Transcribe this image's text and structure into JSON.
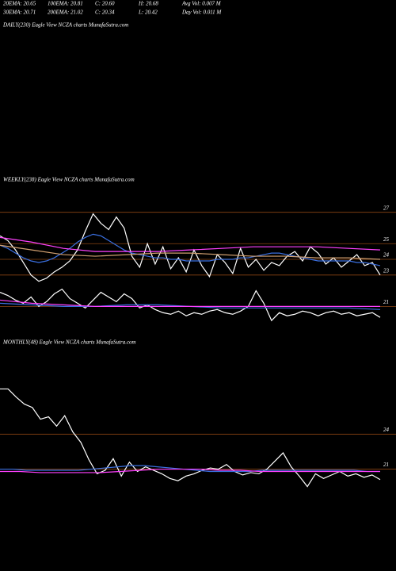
{
  "header": {
    "rows": [
      [
        "20EMA: 20.65",
        "100EMA: 20.81",
        "C: 20.60",
        "H: 20.68",
        "Avg Vol: 0.007 M"
      ],
      [
        "30EMA: 20.71",
        "200EMA: 21.02",
        "C: 20.34",
        "L: 20.42",
        "Day Vol: 0.011 M"
      ]
    ]
  },
  "chart_data": [
    {
      "type": "line",
      "title": "DAILY(230) Eagle  View  NCZA charts MunafaSutra.com",
      "series": []
    },
    {
      "type": "line",
      "title": "WEEKLY(238) Eagle  View  NCZA charts MunafaSutra.com",
      "ylim": [
        19.4,
        28.4
      ],
      "yticks": [
        27,
        25,
        24,
        23,
        21
      ],
      "grid": true,
      "grid_color": "#8b4513",
      "series": [
        {
          "color": "#ffffff",
          "values": [
            25.5,
            25.2,
            24.6,
            23.8,
            23.0,
            22.6,
            22.8,
            23.2,
            23.5,
            23.9,
            24.6,
            25.8,
            26.9,
            26.3,
            25.9,
            26.7,
            26.0,
            24.2,
            23.5,
            25.0,
            23.7,
            24.8,
            23.4,
            24.1,
            23.2,
            24.6,
            23.6,
            22.9,
            24.3,
            23.8,
            23.1,
            24.7,
            23.5,
            24.0,
            23.3,
            23.8,
            23.6,
            24.2,
            24.5,
            23.9,
            24.8,
            24.4,
            23.7,
            24.1,
            23.5,
            23.9,
            24.3,
            23.6,
            23.8,
            23.0
          ]
        },
        {
          "color": "#ffffff",
          "values": [
            21.9,
            21.7,
            21.4,
            21.2,
            21.6,
            21.0,
            21.3,
            21.8,
            22.1,
            21.5,
            21.2,
            20.9,
            21.4,
            21.9,
            21.6,
            21.3,
            21.8,
            21.5,
            20.9,
            21.1,
            20.8,
            20.6,
            20.5,
            20.7,
            20.4,
            20.6,
            20.5,
            20.7,
            20.8,
            20.6,
            20.5,
            20.7,
            21.0,
            22.0,
            21.2,
            20.1,
            20.6,
            20.4,
            20.5,
            20.7,
            20.6,
            20.4,
            20.6,
            20.7,
            20.5,
            20.6,
            20.4,
            20.5,
            20.6,
            20.3
          ]
        },
        {
          "color": "#3a6fe0",
          "values": [
            24.9,
            24.7,
            24.4,
            24.1,
            23.9,
            23.8,
            23.9,
            24.1,
            24.4,
            24.7,
            25.1,
            25.4,
            25.6,
            25.5,
            25.2,
            24.9,
            24.6,
            24.4,
            24.3,
            24.2,
            24.1,
            24.1,
            24.0,
            24.0,
            23.9,
            23.9,
            23.9,
            23.9,
            24.0,
            24.0,
            24.0,
            24.1,
            24.1,
            24.2,
            24.3,
            24.4,
            24.4,
            24.3,
            24.2,
            24.1,
            24.0,
            23.9,
            23.9,
            23.9,
            23.9,
            23.9,
            23.8,
            23.8,
            23.7,
            23.6
          ]
        },
        {
          "color": "#ff40ff",
          "values": [
            25.4,
            25.1,
            24.7,
            24.5,
            24.5,
            24.5,
            24.6,
            24.7,
            24.8,
            24.8,
            24.8,
            24.7,
            24.6
          ]
        },
        {
          "color": "#d2a070",
          "values": [
            24.9,
            24.6,
            24.3,
            24.2,
            24.3,
            24.4,
            24.4,
            24.3,
            24.2,
            24.2,
            24.1,
            24.1,
            24.0
          ]
        },
        {
          "color": "#3a6fe0",
          "values": [
            21.2,
            21.1,
            21.0,
            21.0,
            21.1,
            21.1,
            21.0,
            20.9,
            20.9,
            20.9,
            20.9,
            20.9,
            20.8
          ]
        },
        {
          "color": "#ff40ff",
          "values": [
            21.4,
            21.2,
            21.1,
            21.0,
            21.0,
            21.0,
            21.0,
            21.0,
            21.0,
            21.0,
            21.0,
            21.0,
            21.0
          ]
        }
      ]
    },
    {
      "type": "line",
      "title": "MONTHLY(48) Eagle  View  NCZA charts MunafaSutra.com",
      "ylim": [
        13.6,
        31.0
      ],
      "yticks": [
        24,
        21
      ],
      "grid": true,
      "grid_color": "#8b4513",
      "series": [
        {
          "color": "#ffffff",
          "values": [
            27.9,
            27.9,
            27.2,
            26.6,
            26.3,
            25.3,
            25.5,
            24.7,
            25.6,
            24.2,
            23.3,
            21.8,
            20.6,
            20.9,
            21.9,
            20.4,
            21.6,
            20.8,
            21.2,
            20.9,
            20.6,
            20.2,
            20.0,
            20.4,
            20.6,
            20.9,
            21.1,
            21.0,
            21.4,
            20.8,
            20.5,
            20.7,
            20.6,
            21.0,
            21.7,
            22.4,
            21.2,
            20.4,
            19.5,
            20.6,
            20.2,
            20.5,
            20.8,
            20.4,
            20.6,
            20.3,
            20.5,
            20.1
          ]
        },
        {
          "color": "#3a6fe0",
          "values": [
            21.0,
            21.0,
            20.9,
            20.9,
            20.9,
            20.9,
            20.9,
            21.0,
            21.1,
            21.2,
            21.3,
            21.3,
            21.2,
            21.1,
            21.0,
            20.9,
            20.8,
            20.8,
            20.8,
            20.8,
            20.9,
            20.9,
            20.9,
            20.9,
            20.9,
            20.9,
            20.9,
            20.9,
            20.8,
            20.8
          ]
        },
        {
          "color": "#ff40ff",
          "values": [
            20.8,
            20.8,
            20.7,
            20.7,
            20.7,
            20.7,
            20.8,
            20.9,
            21.0,
            21.0,
            21.0,
            20.9,
            20.9,
            20.8,
            20.8,
            20.8,
            20.8,
            20.8,
            20.8,
            20.8
          ]
        }
      ]
    }
  ]
}
